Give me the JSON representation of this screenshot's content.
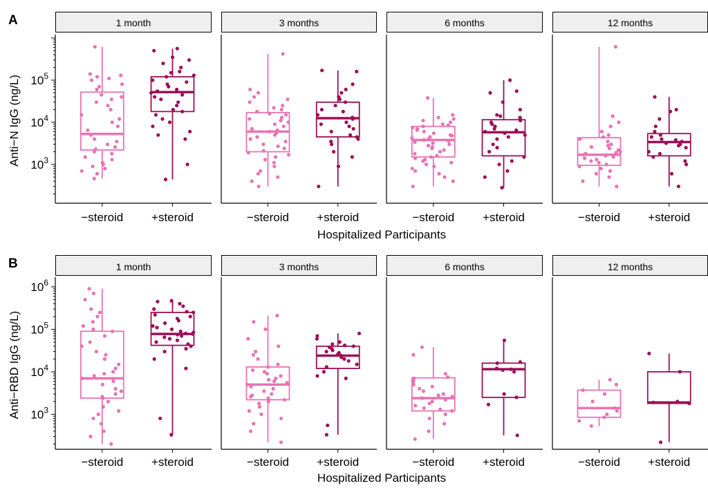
{
  "colors": {
    "minus": "#e873b4",
    "plus": "#9c0f57",
    "strip_bg": "#efefef"
  },
  "chart_data": [
    {
      "type": "box",
      "panel_label": "A",
      "ylabel": "Anti−N IgG (ng/L)",
      "xlabel": "Hospitalized Participants",
      "yscale": "log10",
      "ylim": [
        120,
        1000000
      ],
      "yticks": [
        {
          "v": 1000,
          "base": "10",
          "exp": "3"
        },
        {
          "v": 10000,
          "base": "10",
          "exp": "4"
        },
        {
          "v": 100000,
          "base": "10",
          "exp": "5"
        }
      ],
      "categories": [
        "−steroid",
        "+steroid"
      ],
      "facets": [
        {
          "label": "1 month",
          "boxes": [
            {
              "q1": 2200,
              "median": 5300,
              "q3": 52000,
              "whisker_low": 460,
              "whisker_high": 620000,
              "points": [
                620000,
                140000,
                130000,
                120000,
                110000,
                100000,
                80000,
                70000,
                60000,
                45000,
                40000,
                35000,
                30000,
                25000,
                20000,
                15000,
                12000,
                10000,
                8000,
                6500,
                5000,
                4000,
                3500,
                3000,
                2600,
                2300,
                2000,
                1800,
                1500,
                1300,
                1100,
                1000,
                900,
                800,
                700,
                600,
                460
              ]
            },
            {
              "q1": 18000,
              "median": 52000,
              "q3": 120000,
              "whisker_low": 440,
              "whisker_high": 560000,
              "points": [
                560000,
                500000,
                350000,
                300000,
                250000,
                200000,
                160000,
                150000,
                130000,
                120000,
                100000,
                90000,
                80000,
                70000,
                60000,
                55000,
                50000,
                45000,
                40000,
                35000,
                30000,
                25000,
                20000,
                18000,
                15000,
                12000,
                10000,
                8000,
                6000,
                5000,
                4000,
                1000,
                440
              ]
            }
          ]
        },
        {
          "label": "3 months",
          "boxes": [
            {
              "q1": 2000,
              "median": 6000,
              "q3": 17000,
              "whisker_low": 300,
              "whisker_high": 420000,
              "points": [
                420000,
                60000,
                50000,
                40000,
                35000,
                30000,
                25000,
                22000,
                20000,
                18000,
                16000,
                15000,
                13000,
                12000,
                11000,
                10000,
                9000,
                8000,
                7000,
                6500,
                6000,
                5500,
                5000,
                4500,
                4000,
                3500,
                3000,
                2700,
                2400,
                2100,
                1900,
                1700,
                1500,
                1300,
                1100,
                900,
                700,
                600,
                500,
                400,
                300
              ]
            },
            {
              "q1": 4500,
              "median": 12500,
              "q3": 30000,
              "whisker_low": 300,
              "whisker_high": 170000,
              "points": [
                170000,
                160000,
                80000,
                60000,
                50000,
                40000,
                35000,
                30000,
                25000,
                20000,
                18000,
                15000,
                13000,
                12000,
                10000,
                9000,
                8000,
                7000,
                6000,
                5000,
                4500,
                4000,
                3500,
                3000,
                2000,
                1500,
                900,
                300
              ]
            }
          ]
        },
        {
          "label": "6 months",
          "boxes": [
            {
              "q1": 1500,
              "median": 3800,
              "q3": 8000,
              "whisker_low": 300,
              "whisker_high": 38000,
              "points": [
                38000,
                15000,
                13000,
                12000,
                11000,
                10000,
                9000,
                8500,
                8000,
                7500,
                7000,
                6500,
                6000,
                5500,
                5000,
                4800,
                4500,
                4200,
                4000,
                3800,
                3600,
                3400,
                3200,
                3000,
                2800,
                2600,
                2400,
                2200,
                2000,
                1800,
                1600,
                1500,
                1400,
                1300,
                1200,
                1100,
                1000,
                900,
                800,
                700,
                600,
                500,
                400,
                300
              ]
            },
            {
              "q1": 1600,
              "median": 5800,
              "q3": 11500,
              "whisker_low": 280,
              "whisker_high": 100000,
              "points": [
                100000,
                55000,
                50000,
                30000,
                20000,
                15000,
                14000,
                13000,
                12000,
                11000,
                10000,
                9000,
                8000,
                7000,
                6500,
                6000,
                5500,
                5000,
                4500,
                4000,
                3000,
                2500,
                2000,
                1500,
                1200,
                1000,
                700,
                500,
                280
              ]
            }
          ]
        },
        {
          "label": "12 months",
          "boxes": [
            {
              "q1": 950,
              "median": 1700,
              "q3": 4300,
              "whisker_low": 300,
              "whisker_high": 620000,
              "points": [
                620000,
                14000,
                10000,
                8000,
                6000,
                5000,
                4500,
                4000,
                3500,
                3000,
                2800,
                2600,
                2400,
                2200,
                2000,
                1900,
                1800,
                1700,
                1600,
                1500,
                1400,
                1300,
                1200,
                1100,
                1000,
                900,
                800,
                700,
                600,
                500,
                400,
                300
              ]
            },
            {
              "q1": 1600,
              "median": 3400,
              "q3": 5400,
              "whisker_low": 300,
              "whisker_high": 40000,
              "points": [
                40000,
                20000,
                18000,
                12000,
                8000,
                6000,
                5000,
                4500,
                4000,
                3800,
                3500,
                3200,
                3000,
                2800,
                2500,
                2000,
                1800,
                1500,
                1200,
                1000,
                600,
                300
              ]
            }
          ]
        }
      ]
    },
    {
      "type": "box",
      "panel_label": "B",
      "ylabel": "Anti−RBD IgG (ng/L)",
      "xlabel": "Hospitalized Participants",
      "yscale": "log10",
      "ylim": [
        150,
        1400000
      ],
      "yticks": [
        {
          "v": 1000,
          "base": "10",
          "exp": "3"
        },
        {
          "v": 10000,
          "base": "10",
          "exp": "4"
        },
        {
          "v": 100000,
          "base": "10",
          "exp": "5"
        },
        {
          "v": 1000000,
          "base": "10",
          "exp": "6"
        }
      ],
      "categories": [
        "−steroid",
        "+steroid"
      ],
      "facets": [
        {
          "label": "1 month",
          "boxes": [
            {
              "q1": 2400,
              "median": 7000,
              "q3": 90000,
              "whisker_low": 200,
              "whisker_high": 900000,
              "points": [
                900000,
                700000,
                500000,
                300000,
                250000,
                200000,
                150000,
                120000,
                100000,
                90000,
                70000,
                50000,
                40000,
                30000,
                25000,
                20000,
                15000,
                12000,
                10000,
                9000,
                8000,
                7000,
                6000,
                5000,
                4000,
                3500,
                3000,
                2600,
                2400,
                2000,
                1500,
                1200,
                1000,
                800,
                600,
                400,
                300,
                200
              ]
            },
            {
              "q1": 42000,
              "median": 78000,
              "q3": 250000,
              "whisker_low": 330,
              "whisker_high": 470000,
              "points": [
                470000,
                450000,
                400000,
                350000,
                300000,
                260000,
                250000,
                220000,
                200000,
                180000,
                160000,
                140000,
                120000,
                110000,
                100000,
                90000,
                85000,
                80000,
                78000,
                75000,
                70000,
                65000,
                60000,
                55000,
                50000,
                45000,
                40000,
                35000,
                30000,
                20000,
                12000,
                800,
                330
              ]
            }
          ]
        },
        {
          "label": "3 months",
          "boxes": [
            {
              "q1": 2200,
              "median": 5000,
              "q3": 13000,
              "whisker_low": 220,
              "whisker_high": 210000,
              "points": [
                210000,
                150000,
                100000,
                60000,
                40000,
                30000,
                25000,
                20000,
                15000,
                13000,
                11000,
                10000,
                9000,
                8000,
                7000,
                6500,
                6000,
                5500,
                5000,
                4500,
                4000,
                3500,
                3000,
                2800,
                2600,
                2400,
                2200,
                2000,
                1800,
                1500,
                1200,
                1000,
                800,
                600,
                400,
                220
              ]
            },
            {
              "q1": 12000,
              "median": 24000,
              "q3": 40000,
              "whisker_low": 330,
              "whisker_high": 80000,
              "points": [
                80000,
                70000,
                60000,
                50000,
                45000,
                42000,
                40000,
                38000,
                35000,
                32000,
                30000,
                28000,
                26000,
                24000,
                22000,
                20000,
                18000,
                15000,
                13000,
                10000,
                8000,
                7000,
                550,
                330
              ]
            }
          ]
        },
        {
          "label": "6 months",
          "boxes": [
            {
              "q1": 1200,
              "median": 2400,
              "q3": 7200,
              "whisker_low": 260,
              "whisker_high": 38000,
              "points": [
                38000,
                25000,
                9000,
                7500,
                7000,
                6000,
                5000,
                4500,
                4000,
                3500,
                3000,
                2800,
                2600,
                2400,
                2200,
                2000,
                1800,
                1600,
                1400,
                1300,
                1200,
                1000,
                800,
                600,
                400,
                260
              ]
            },
            {
              "q1": 2500,
              "median": 11500,
              "q3": 16000,
              "whisker_low": 320,
              "whisker_high": 55000,
              "points": [
                55000,
                17000,
                16000,
                12000,
                11500,
                11000,
                10000,
                3000,
                2500,
                1700,
                320
              ]
            }
          ]
        },
        {
          "label": "12 months",
          "boxes": [
            {
              "q1": 850,
              "median": 1400,
              "q3": 3700,
              "whisker_low": 530,
              "whisker_high": 6500,
              "points": [
                6500,
                5000,
                3700,
                3000,
                2000,
                1400,
                1200,
                1000,
                850,
                700,
                530
              ]
            },
            {
              "q1": 1800,
              "median": 1900,
              "q3": 10000,
              "whisker_low": 220,
              "whisker_high": 27000,
              "points": [
                27000,
                10000,
                2000,
                1900,
                1800,
                220
              ]
            }
          ]
        }
      ]
    }
  ]
}
